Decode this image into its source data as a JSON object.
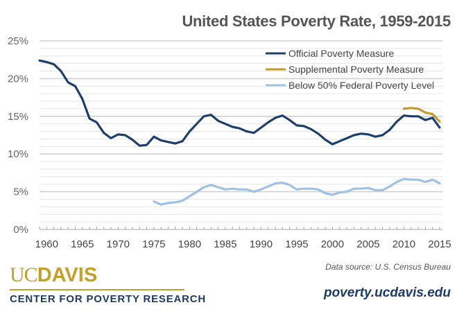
{
  "chart_data": {
    "type": "line",
    "title": "United States Poverty Rate, 1959-2015",
    "xlabel": "",
    "ylabel": "",
    "xlim": [
      1959,
      2015
    ],
    "ylim": [
      0,
      25
    ],
    "grid": true,
    "legend_position": "top-right",
    "x_ticks": [
      "1960",
      "1965",
      "1970",
      "1975",
      "1980",
      "1985",
      "1990",
      "1995",
      "2000",
      "2005",
      "2010",
      "2015"
    ],
    "y_ticks": [
      "0%",
      "5%",
      "10%",
      "15%",
      "20%",
      "25%"
    ],
    "series": [
      {
        "name": "Official Poverty Measure",
        "color": "#1d3f6b",
        "x": [
          1959,
          1960,
          1961,
          1962,
          1963,
          1964,
          1965,
          1966,
          1967,
          1968,
          1969,
          1970,
          1971,
          1972,
          1973,
          1974,
          1975,
          1976,
          1977,
          1978,
          1979,
          1980,
          1981,
          1982,
          1983,
          1984,
          1985,
          1986,
          1987,
          1988,
          1989,
          1990,
          1991,
          1992,
          1993,
          1994,
          1995,
          1996,
          1997,
          1998,
          1999,
          2000,
          2001,
          2002,
          2003,
          2004,
          2005,
          2006,
          2007,
          2008,
          2009,
          2010,
          2011,
          2012,
          2013,
          2014,
          2015
        ],
        "values": [
          22.4,
          22.2,
          21.9,
          21.0,
          19.5,
          19.0,
          17.3,
          14.7,
          14.2,
          12.8,
          12.1,
          12.6,
          12.5,
          11.9,
          11.1,
          11.2,
          12.3,
          11.8,
          11.6,
          11.4,
          11.7,
          13.0,
          14.0,
          15.0,
          15.2,
          14.4,
          14.0,
          13.6,
          13.4,
          13.0,
          12.8,
          13.5,
          14.2,
          14.8,
          15.1,
          14.5,
          13.8,
          13.7,
          13.3,
          12.7,
          11.9,
          11.3,
          11.7,
          12.1,
          12.5,
          12.7,
          12.6,
          12.3,
          12.5,
          13.2,
          14.3,
          15.1,
          15.0,
          15.0,
          14.5,
          14.8,
          13.5
        ]
      },
      {
        "name": "Supplemental Poverty Measure",
        "color": "#c29b26",
        "x": [
          2010,
          2011,
          2012,
          2013,
          2014,
          2015
        ],
        "values": [
          16.0,
          16.1,
          16.0,
          15.5,
          15.3,
          14.3
        ]
      },
      {
        "name": "Below 50% Federal Poverty Level",
        "color": "#9dc2e6",
        "x": [
          1975,
          1976,
          1977,
          1978,
          1979,
          1980,
          1981,
          1982,
          1983,
          1984,
          1985,
          1986,
          1987,
          1988,
          1989,
          1990,
          1991,
          1992,
          1993,
          1994,
          1995,
          1996,
          1997,
          1998,
          1999,
          2000,
          2001,
          2002,
          2003,
          2004,
          2005,
          2006,
          2007,
          2008,
          2009,
          2010,
          2011,
          2012,
          2013,
          2014,
          2015
        ],
        "values": [
          3.7,
          3.3,
          3.5,
          3.6,
          3.8,
          4.4,
          5.0,
          5.6,
          5.9,
          5.6,
          5.3,
          5.4,
          5.3,
          5.3,
          5.0,
          5.3,
          5.7,
          6.1,
          6.2,
          5.9,
          5.3,
          5.4,
          5.4,
          5.3,
          4.8,
          4.6,
          4.9,
          5.0,
          5.4,
          5.4,
          5.5,
          5.2,
          5.2,
          5.7,
          6.3,
          6.7,
          6.6,
          6.6,
          6.3,
          6.6,
          6.1
        ]
      }
    ]
  },
  "footer": {
    "logo_uc": "UC",
    "logo_davis": "DAVIS",
    "logo_center": "CENTER FOR POVERTY RESEARCH",
    "source": "Data source: U.S. Census Bureau",
    "url": "poverty.ucdavis.edu"
  }
}
